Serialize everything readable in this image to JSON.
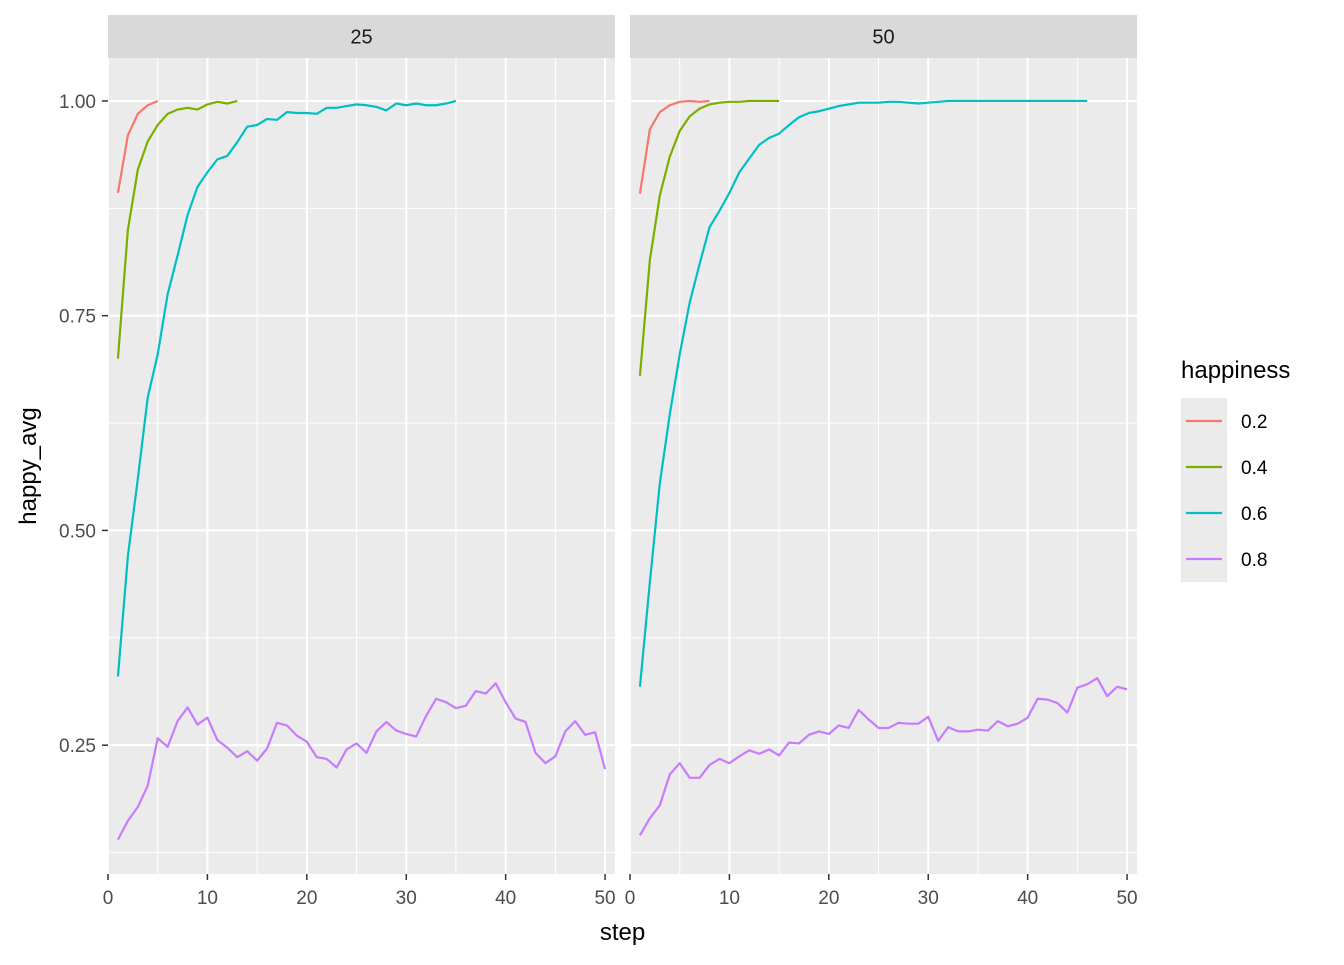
{
  "chart_data": {
    "type": "line",
    "xlabel": "step",
    "ylabel": "happy_avg",
    "xlim": [
      0,
      51
    ],
    "ylim": [
      0.1,
      1.05
    ],
    "x_ticks": [
      {
        "value": 0,
        "label": "0"
      },
      {
        "value": 10,
        "label": "10"
      },
      {
        "value": 20,
        "label": "20"
      },
      {
        "value": 30,
        "label": "30"
      },
      {
        "value": 40,
        "label": "40"
      },
      {
        "value": 50,
        "label": "50"
      }
    ],
    "y_ticks": [
      {
        "value": 0.25,
        "label": "0.25"
      },
      {
        "value": 0.5,
        "label": "0.50"
      },
      {
        "value": 0.75,
        "label": "0.75"
      },
      {
        "value": 1.0,
        "label": "1.00"
      }
    ],
    "grid": true,
    "legend": {
      "title": "happiness",
      "placement": "right",
      "entries": [
        {
          "label": "0.2",
          "color": "#F8766D"
        },
        {
          "label": "0.4",
          "color": "#7CAE00"
        },
        {
          "label": "0.6",
          "color": "#00BFC4"
        },
        {
          "label": "0.8",
          "color": "#C77CFF"
        }
      ]
    },
    "panels": [
      {
        "strip": "25",
        "series": [
          {
            "name": "0.2",
            "color": "#F8766D",
            "x": [
              1,
              2,
              3,
              4,
              5
            ],
            "y": [
              0.893,
              0.96,
              0.985,
              0.995,
              1.0
            ]
          },
          {
            "name": "0.4",
            "color": "#7CAE00",
            "x": [
              1,
              2,
              3,
              4,
              5,
              6,
              7,
              8,
              9,
              10,
              11,
              12,
              13
            ],
            "y": [
              0.7,
              0.85,
              0.92,
              0.953,
              0.972,
              0.985,
              0.99,
              0.992,
              0.99,
              0.996,
              0.999,
              0.997,
              1.0
            ]
          },
          {
            "name": "0.6",
            "color": "#00BFC4",
            "x": [
              1,
              2,
              3,
              4,
              5,
              6,
              7,
              8,
              9,
              10,
              11,
              12,
              13,
              14,
              15,
              16,
              17,
              18,
              19,
              20,
              21,
              22,
              23,
              24,
              25,
              26,
              27,
              28,
              29,
              30,
              31,
              32,
              33,
              34,
              35
            ],
            "y": [
              0.33,
              0.47,
              0.56,
              0.655,
              0.705,
              0.775,
              0.82,
              0.867,
              0.9,
              0.917,
              0.932,
              0.936,
              0.952,
              0.97,
              0.972,
              0.979,
              0.978,
              0.987,
              0.986,
              0.986,
              0.985,
              0.992,
              0.992,
              0.994,
              0.996,
              0.995,
              0.993,
              0.989,
              0.997,
              0.995,
              0.997,
              0.995,
              0.995,
              0.997,
              1.0
            ]
          },
          {
            "name": "0.8",
            "color": "#C77CFF",
            "x": [
              1,
              2,
              3,
              4,
              5,
              6,
              7,
              8,
              9,
              10,
              11,
              12,
              13,
              14,
              15,
              16,
              17,
              18,
              19,
              20,
              21,
              22,
              23,
              24,
              25,
              26,
              27,
              28,
              29,
              30,
              31,
              32,
              33,
              34,
              35,
              36,
              37,
              38,
              39,
              40,
              41,
              42,
              43,
              44,
              45,
              46,
              47,
              48,
              49,
              50
            ],
            "y": [
              0.14,
              0.162,
              0.178,
              0.203,
              0.258,
              0.248,
              0.278,
              0.294,
              0.274,
              0.282,
              0.256,
              0.247,
              0.236,
              0.243,
              0.232,
              0.246,
              0.276,
              0.273,
              0.261,
              0.254,
              0.236,
              0.234,
              0.224,
              0.245,
              0.252,
              0.241,
              0.266,
              0.277,
              0.267,
              0.263,
              0.26,
              0.284,
              0.304,
              0.3,
              0.293,
              0.296,
              0.313,
              0.31,
              0.322,
              0.3,
              0.281,
              0.277,
              0.241,
              0.229,
              0.237,
              0.266,
              0.278,
              0.262,
              0.265,
              0.222
            ]
          }
        ]
      },
      {
        "strip": "50",
        "series": [
          {
            "name": "0.2",
            "color": "#F8766D",
            "x": [
              1,
              2,
              3,
              4,
              5,
              6,
              7,
              8
            ],
            "y": [
              0.892,
              0.967,
              0.987,
              0.995,
              0.999,
              1.0,
              0.999,
              1.0
            ]
          },
          {
            "name": "0.4",
            "color": "#7CAE00",
            "x": [
              1,
              2,
              3,
              4,
              5,
              6,
              7,
              8,
              9,
              10,
              11,
              12,
              13,
              14,
              15
            ],
            "y": [
              0.68,
              0.815,
              0.89,
              0.935,
              0.965,
              0.982,
              0.991,
              0.996,
              0.998,
              0.999,
              0.999,
              1.0,
              1.0,
              1.0,
              1.0
            ]
          },
          {
            "name": "0.6",
            "color": "#00BFC4",
            "x": [
              1,
              2,
              3,
              4,
              5,
              6,
              7,
              8,
              9,
              10,
              11,
              12,
              13,
              14,
              15,
              16,
              17,
              18,
              19,
              20,
              21,
              22,
              23,
              24,
              25,
              26,
              27,
              28,
              29,
              30,
              31,
              32,
              33,
              34,
              35,
              36,
              37,
              38,
              39,
              40,
              41,
              42,
              43,
              44,
              45,
              46
            ],
            "y": [
              0.318,
              0.44,
              0.555,
              0.635,
              0.705,
              0.765,
              0.81,
              0.853,
              0.872,
              0.893,
              0.917,
              0.933,
              0.949,
              0.957,
              0.962,
              0.972,
              0.981,
              0.986,
              0.988,
              0.991,
              0.994,
              0.996,
              0.998,
              0.998,
              0.998,
              0.999,
              0.999,
              0.998,
              0.997,
              0.998,
              0.999,
              1.0,
              1.0,
              1.0,
              1.0,
              1.0,
              1.0,
              1.0,
              1.0,
              1.0,
              1.0,
              1.0,
              1.0,
              1.0,
              1.0,
              1.0
            ]
          },
          {
            "name": "0.8",
            "color": "#C77CFF",
            "x": [
              1,
              2,
              3,
              4,
              5,
              6,
              7,
              8,
              9,
              10,
              11,
              12,
              13,
              14,
              15,
              16,
              17,
              18,
              19,
              20,
              21,
              22,
              23,
              24,
              25,
              26,
              27,
              28,
              29,
              30,
              31,
              32,
              33,
              34,
              35,
              36,
              37,
              38,
              39,
              40,
              41,
              42,
              43,
              44,
              45,
              46,
              47,
              48,
              49,
              50
            ],
            "y": [
              0.145,
              0.165,
              0.18,
              0.216,
              0.229,
              0.212,
              0.212,
              0.227,
              0.234,
              0.229,
              0.237,
              0.244,
              0.24,
              0.245,
              0.238,
              0.253,
              0.252,
              0.262,
              0.266,
              0.263,
              0.273,
              0.27,
              0.291,
              0.28,
              0.27,
              0.27,
              0.276,
              0.275,
              0.275,
              0.283,
              0.255,
              0.271,
              0.266,
              0.266,
              0.268,
              0.267,
              0.278,
              0.272,
              0.275,
              0.282,
              0.304,
              0.303,
              0.299,
              0.288,
              0.317,
              0.321,
              0.328,
              0.307,
              0.318,
              0.315
            ]
          }
        ]
      }
    ]
  }
}
